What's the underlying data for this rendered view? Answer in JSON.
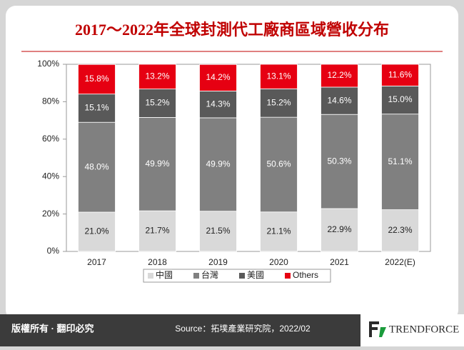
{
  "chart_data": {
    "type": "stacked_bar",
    "title": "2017～2022年全球封測代工廠商區域營收分布",
    "categories": [
      "2017",
      "2018",
      "2019",
      "2020",
      "2021",
      "2022(E)"
    ],
    "series": [
      {
        "name": "中國",
        "color": "#d9d9d9",
        "values": [
          21.0,
          21.7,
          21.5,
          21.1,
          22.9,
          22.3
        ],
        "value_labels": [
          "21.0%",
          "21.7%",
          "21.5%",
          "21.1%",
          "22.9%",
          "22.3%"
        ]
      },
      {
        "name": "台灣",
        "color": "#808080",
        "values": [
          48.0,
          49.9,
          49.9,
          50.6,
          50.3,
          51.1
        ],
        "value_labels": [
          "48.0%",
          "49.9%",
          "49.9%",
          "50.6%",
          "50.3%",
          "51.1%"
        ]
      },
      {
        "name": "美國",
        "color": "#595959",
        "values": [
          15.1,
          15.2,
          14.3,
          15.2,
          14.6,
          15.0
        ],
        "value_labels": [
          "15.1%",
          "15.2%",
          "14.3%",
          "15.2%",
          "14.6%",
          "15.0%"
        ]
      },
      {
        "name": "Others",
        "color": "#e60012",
        "values": [
          15.8,
          13.2,
          14.2,
          13.1,
          12.2,
          11.6
        ],
        "value_labels": [
          "15.8%",
          "13.2%",
          "14.2%",
          "13.1%",
          "12.2%",
          "11.6%"
        ]
      }
    ],
    "ylim": [
      0,
      100
    ],
    "yticks": [
      {
        "value": 0,
        "label": "0%"
      },
      {
        "value": 20,
        "label": "20%"
      },
      {
        "value": 40,
        "label": "40%"
      },
      {
        "value": 60,
        "label": "60%"
      },
      {
        "value": 80,
        "label": "80%"
      },
      {
        "value": 100,
        "label": "100%"
      }
    ],
    "legend": "bottom"
  },
  "footer": {
    "copyright": "版權所有 · 翻印必究",
    "source": "Source：拓墣產業研究院，2022/02",
    "brand": "TRENDFORCE"
  }
}
